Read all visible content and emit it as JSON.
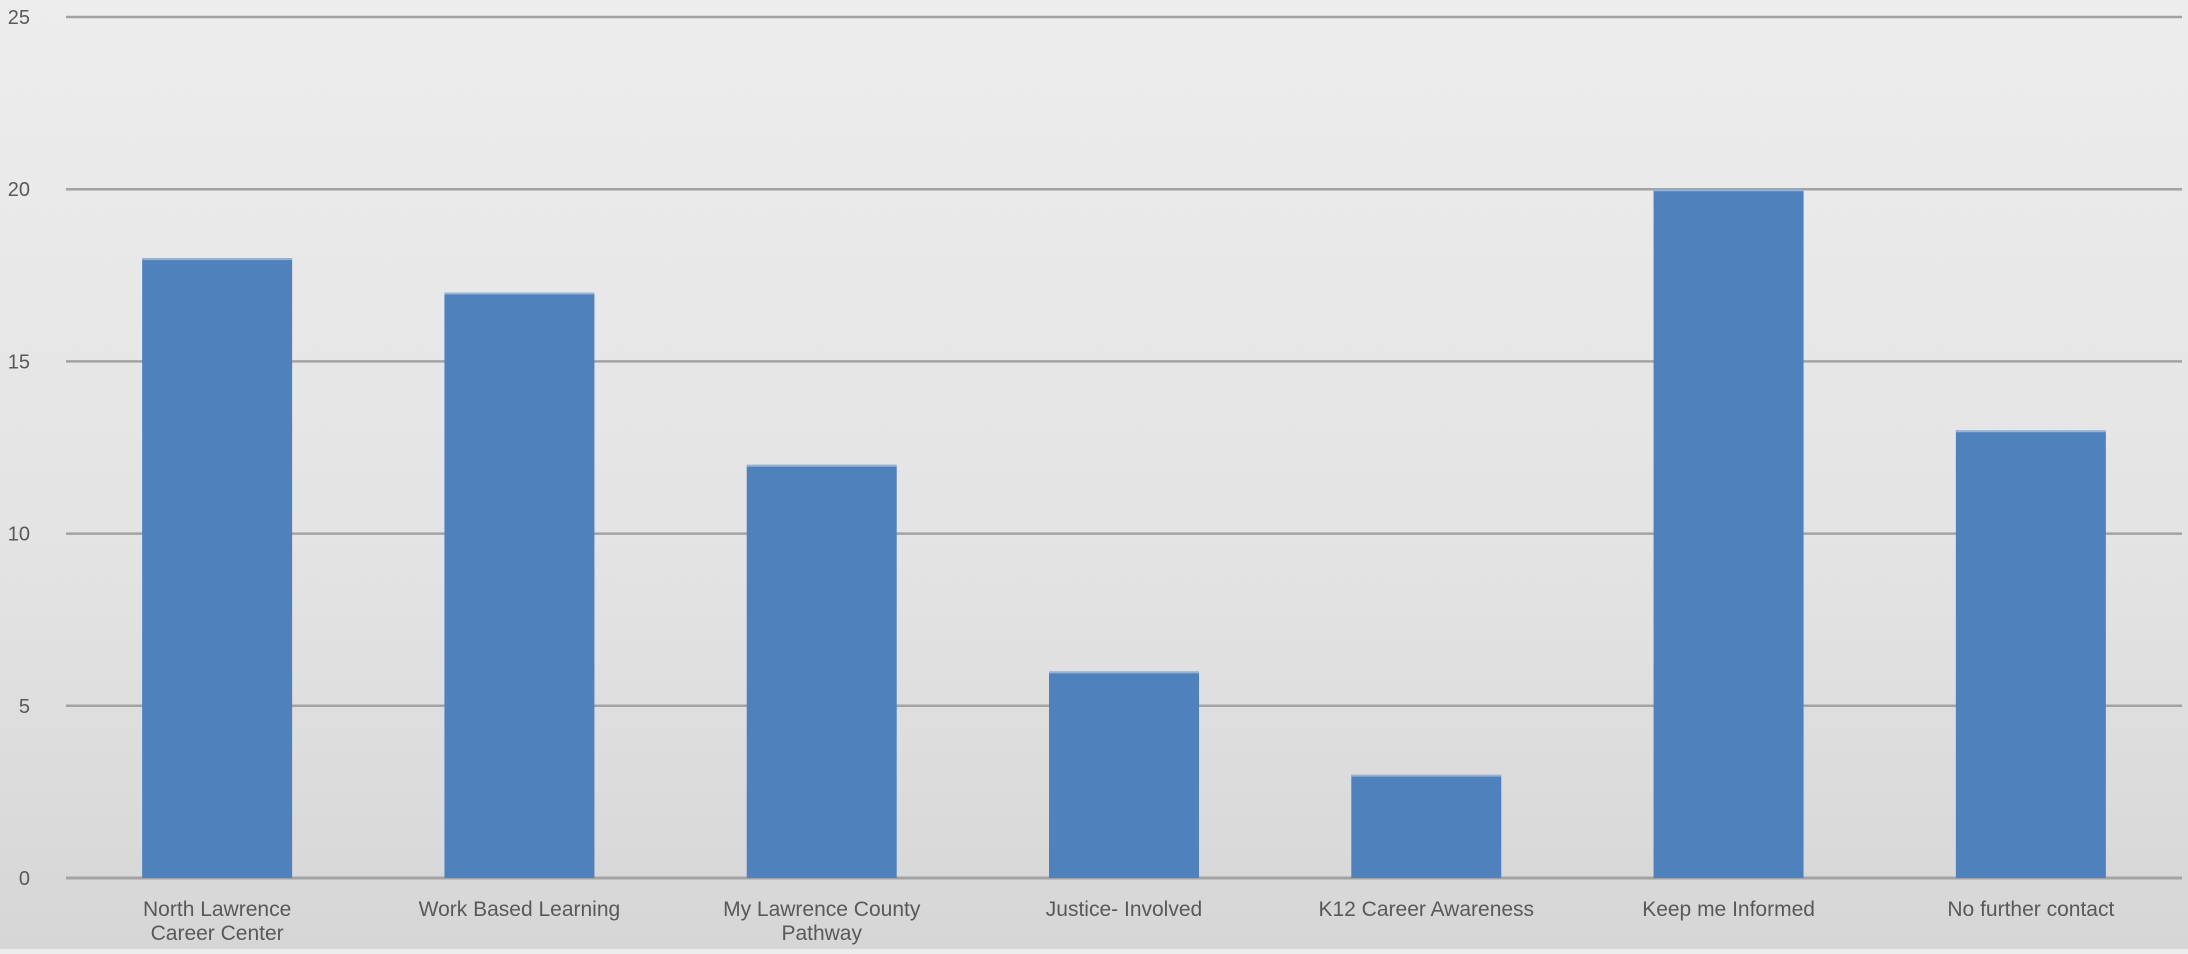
{
  "chart_data": {
    "type": "bar",
    "title": "",
    "xlabel": "",
    "ylabel": "",
    "ylim": [
      0,
      25
    ],
    "yticks": [
      0,
      5,
      10,
      15,
      20,
      25
    ],
    "grid": true,
    "categories": [
      [
        "North Lawrence",
        "Career Center"
      ],
      [
        "Work Based Learning"
      ],
      [
        "My Lawrence County",
        "Pathway"
      ],
      [
        "Justice- Involved"
      ],
      [
        "K12 Career Awareness"
      ],
      [
        "Keep me Informed"
      ],
      [
        "No further contact"
      ]
    ],
    "values": [
      18,
      17,
      12,
      6,
      3,
      20,
      13
    ],
    "colors": {
      "bar": "#4f81bd",
      "bar_edge": "#c9d3df",
      "grid": "#a3a3a3",
      "text": "#595959"
    }
  }
}
